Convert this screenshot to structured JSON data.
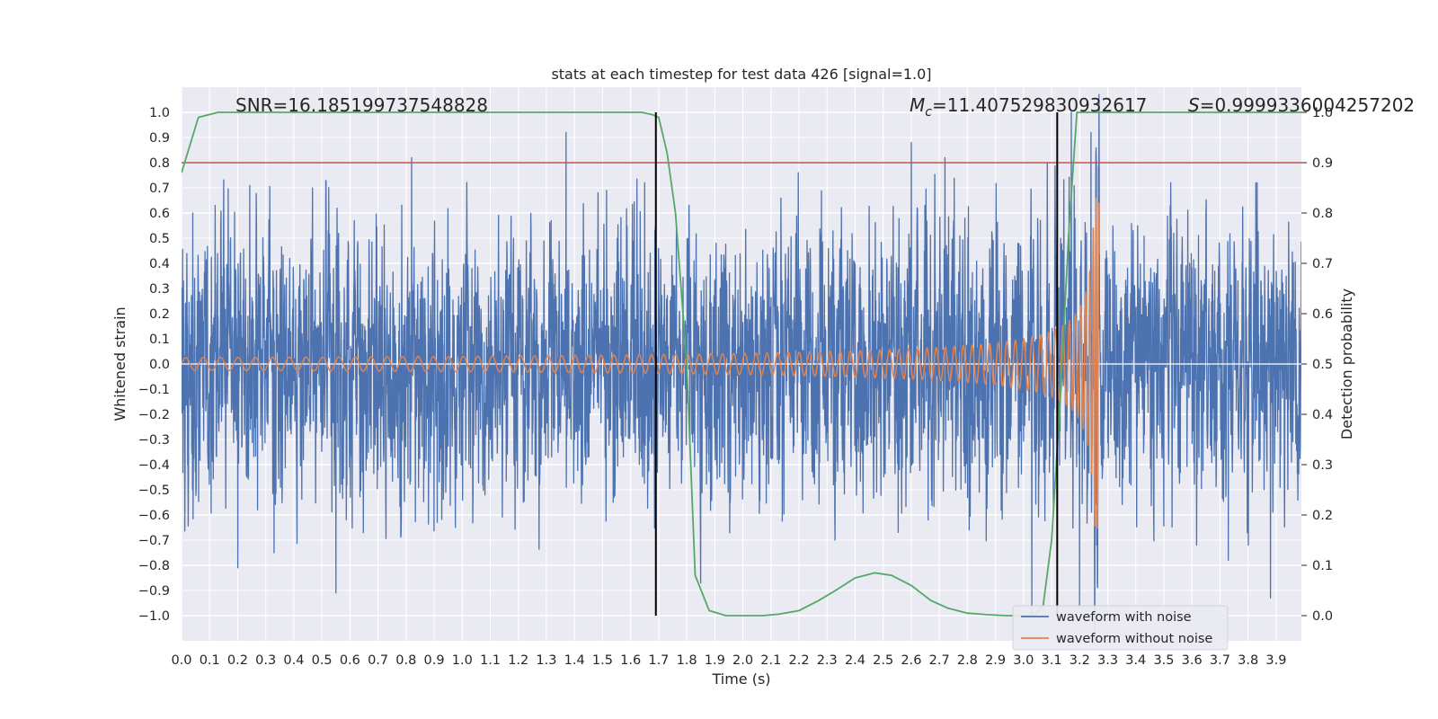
{
  "chart_data": {
    "type": "line",
    "title": "stats at each timestep for test data 426 [signal=1.0]",
    "xlabel": "Time (s)",
    "ylabel": "Whitened strain",
    "ylabel_right": "Detection probability",
    "xlim": [
      0.0,
      3.99
    ],
    "ylim": [
      -1.1,
      1.1
    ],
    "ylim_right": [
      -0.05,
      1.05
    ],
    "x_ticks": [
      "0.0",
      "0.1",
      "0.2",
      "0.3",
      "0.4",
      "0.5",
      "0.6",
      "0.7",
      "0.8",
      "0.9",
      "1.0",
      "1.1",
      "1.2",
      "1.3",
      "1.4",
      "1.5",
      "1.6",
      "1.7",
      "1.8",
      "1.9",
      "2.0",
      "2.1",
      "2.2",
      "2.3",
      "2.4",
      "2.5",
      "2.6",
      "2.7",
      "2.8",
      "2.9",
      "3.0",
      "3.1",
      "3.2",
      "3.3",
      "3.4",
      "3.5",
      "3.6",
      "3.7",
      "3.8",
      "3.9"
    ],
    "y_ticks": [
      "−1.0",
      "−0.9",
      "−0.8",
      "−0.7",
      "−0.6",
      "−0.5",
      "−0.4",
      "−0.3",
      "−0.2",
      "−0.1",
      "0.0",
      "0.1",
      "0.2",
      "0.3",
      "0.4",
      "0.5",
      "0.6",
      "0.7",
      "0.8",
      "0.9",
      "1.0"
    ],
    "y_ticks_right": [
      "0.0",
      "0.1",
      "0.2",
      "0.3",
      "0.4",
      "0.5",
      "0.6",
      "0.7",
      "0.8",
      "0.9",
      "1.0"
    ],
    "annotations": {
      "snr": "SNR=16.185199737548828",
      "mc_symbol": "M",
      "mc_sub": "c",
      "mc_value": "=11.407529830932617",
      "s_symbol": "S",
      "s_value": "=0.9999336004257202"
    },
    "series": [
      {
        "name": "waveform with noise",
        "color": "#4c72b0",
        "kind": "noise",
        "amplitude_std": 0.3,
        "t_range": [
          0.0,
          3.99
        ],
        "extreme_points": [
          {
            "t": 0.04,
            "v": 0.6
          },
          {
            "t": 0.12,
            "v": 0.63
          },
          {
            "t": 0.2,
            "v": -0.81
          },
          {
            "t": 0.33,
            "v": -0.75
          },
          {
            "t": 0.55,
            "v": -0.91
          },
          {
            "t": 0.82,
            "v": 0.82
          },
          {
            "t": 1.37,
            "v": 0.92
          },
          {
            "t": 1.65,
            "v": 0.72
          },
          {
            "t": 1.85,
            "v": -0.87
          },
          {
            "t": 2.6,
            "v": 0.88
          },
          {
            "t": 2.72,
            "v": 0.82
          },
          {
            "t": 3.03,
            "v": -1.0
          },
          {
            "t": 3.17,
            "v": 1.0
          },
          {
            "t": 3.2,
            "v": -0.96
          },
          {
            "t": 3.24,
            "v": 0.92
          },
          {
            "t": 3.26,
            "v": -0.72
          },
          {
            "t": 3.73,
            "v": -0.78
          },
          {
            "t": 3.88,
            "v": -0.93
          }
        ]
      },
      {
        "name": "waveform without noise",
        "color": "#dd8452",
        "kind": "chirp",
        "t_start": 0.0,
        "t_merger": 3.26,
        "t_end": 3.27,
        "cycles_per_0p1s_start": 1.6,
        "cycles_per_0p1s_end": 3.6,
        "amplitude_start": 0.025,
        "amplitude_peak": 0.66
      },
      {
        "name": "detection probability",
        "color": "#55a868",
        "axis": "right",
        "x": [
          0.0,
          0.06,
          0.13,
          0.2,
          0.4,
          0.8,
          1.2,
          1.6,
          1.64,
          1.68,
          1.7,
          1.73,
          1.76,
          1.8,
          1.83,
          1.88,
          1.94,
          2.0,
          2.07,
          2.13,
          2.2,
          2.27,
          2.33,
          2.4,
          2.47,
          2.53,
          2.6,
          2.67,
          2.73,
          2.8,
          2.87,
          2.94,
          3.0,
          3.04,
          3.07,
          3.1,
          3.13,
          3.16,
          3.19,
          3.22,
          3.3,
          3.6,
          3.99
        ],
        "y": [
          0.88,
          0.99,
          1.0,
          1.0,
          1.0,
          1.0,
          1.0,
          1.0,
          1.0,
          0.995,
          0.99,
          0.92,
          0.8,
          0.5,
          0.08,
          0.01,
          0.0,
          0.0,
          0.0,
          0.003,
          0.01,
          0.03,
          0.05,
          0.075,
          0.085,
          0.08,
          0.06,
          0.03,
          0.015,
          0.005,
          0.002,
          0.0,
          0.0,
          0.0,
          0.02,
          0.15,
          0.42,
          0.75,
          1.0,
          1.0,
          1.0,
          1.0,
          1.0
        ]
      }
    ],
    "threshold_line": {
      "value": 0.9,
      "axis": "right",
      "color": "#c44e52"
    },
    "vertical_markers": [
      {
        "t": 1.69,
        "y_right_from": 0.0,
        "y_right_to": 1.0,
        "color": "#000000"
      },
      {
        "t": 3.12,
        "y_right_from": 0.0,
        "y_right_to": 1.0,
        "color": "#000000"
      }
    ],
    "legend": {
      "location": "lower-right",
      "entries": [
        {
          "label": "waveform with noise",
          "color": "#4c72b0"
        },
        {
          "label": "waveform without noise",
          "color": "#dd8452"
        }
      ]
    },
    "grid": true,
    "background": "#eaeaf2"
  }
}
